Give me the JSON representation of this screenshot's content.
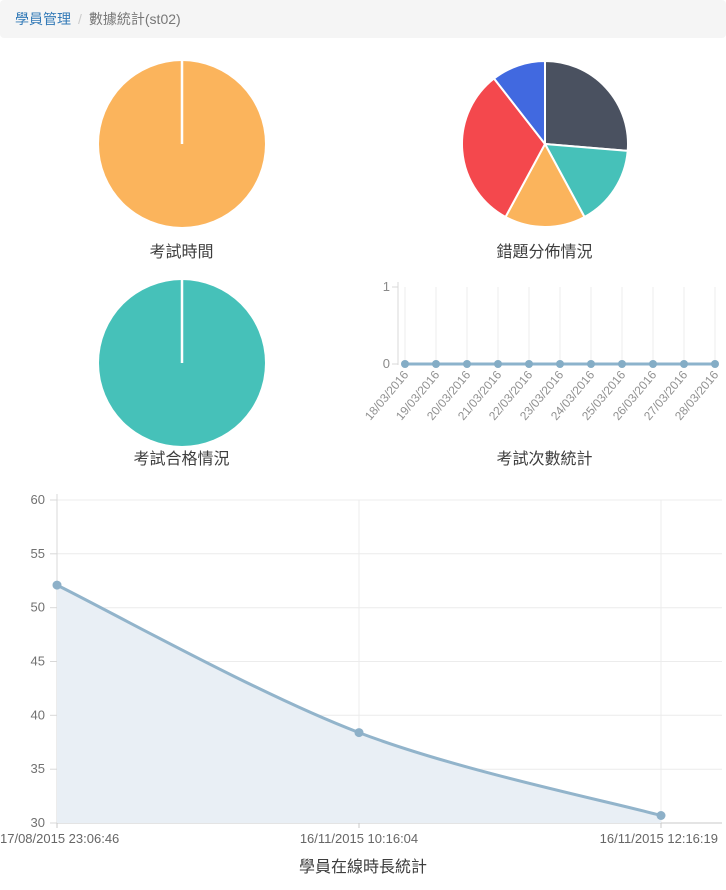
{
  "breadcrumb": {
    "link_label": "學員管理",
    "separator": "/",
    "current_label": "數據統計(st02)"
  },
  "colors": {
    "link_blue": "#337ab7",
    "breadcrumb_bg": "#f5f5f5",
    "title_text": "#3d3d3d",
    "pie_orange": "#fbb45c",
    "pie_teal": "#46c1b9",
    "pie_dark_slate": "#4a5160",
    "pie_red": "#f4484d",
    "pie_blue": "#4169e0",
    "line_steel_blue": "#8cb3cc",
    "area_fill": "#e9eff5"
  },
  "chart_style": {
    "grid_color": "#ececec",
    "axis_color": "#d8d8d8",
    "tick_text_color": "#8a8a8a",
    "bottom_label_color": "#666666"
  },
  "chart_data": [
    {
      "id": "exam-time",
      "type": "pie",
      "title": "考試時間",
      "values": [
        100
      ],
      "colors": [
        "#fbb45c"
      ],
      "divider_at_top": true
    },
    {
      "id": "wrong-distribution",
      "type": "pie",
      "title": "錯題分佈情況",
      "values": [
        5,
        3,
        3,
        6,
        2
      ],
      "colors": [
        "#4a5160",
        "#46c1b9",
        "#fbb45c",
        "#f4484d",
        "#4169e0"
      ]
    },
    {
      "id": "exam-pass",
      "type": "pie",
      "title": "考試合格情況",
      "values": [
        100
      ],
      "colors": [
        "#46c1b9"
      ],
      "divider_at_top": true
    },
    {
      "id": "exam-count",
      "type": "line",
      "title": "考試次數統計",
      "x": [
        "18/03/2016",
        "19/03/2016",
        "20/03/2016",
        "21/03/2016",
        "22/03/2016",
        "23/03/2016",
        "24/03/2016",
        "25/03/2016",
        "26/03/2016",
        "27/03/2016",
        "28/03/2016"
      ],
      "values": [
        0,
        0,
        0,
        0,
        0,
        0,
        0,
        0,
        0,
        0,
        0
      ],
      "ylim": [
        0,
        1
      ],
      "yticks": [
        0,
        1
      ],
      "x_label_rotation": -50,
      "line_color": "#8cb3cc",
      "marker_color": "#84adc6"
    },
    {
      "id": "online-time",
      "type": "area",
      "title": "學員在線時長統計",
      "x": [
        "17/08/2015 23:06:46",
        "16/11/2015 10:16:04",
        "16/11/2015 12:16:19"
      ],
      "values": [
        52.1,
        38.4,
        30.7
      ],
      "ylim": [
        30,
        60
      ],
      "yticks": [
        30,
        35,
        40,
        45,
        50,
        55,
        60
      ],
      "line_color": "#92b4cb",
      "marker_color": "#8db0c8",
      "fill_color": "#e9eff5"
    }
  ]
}
